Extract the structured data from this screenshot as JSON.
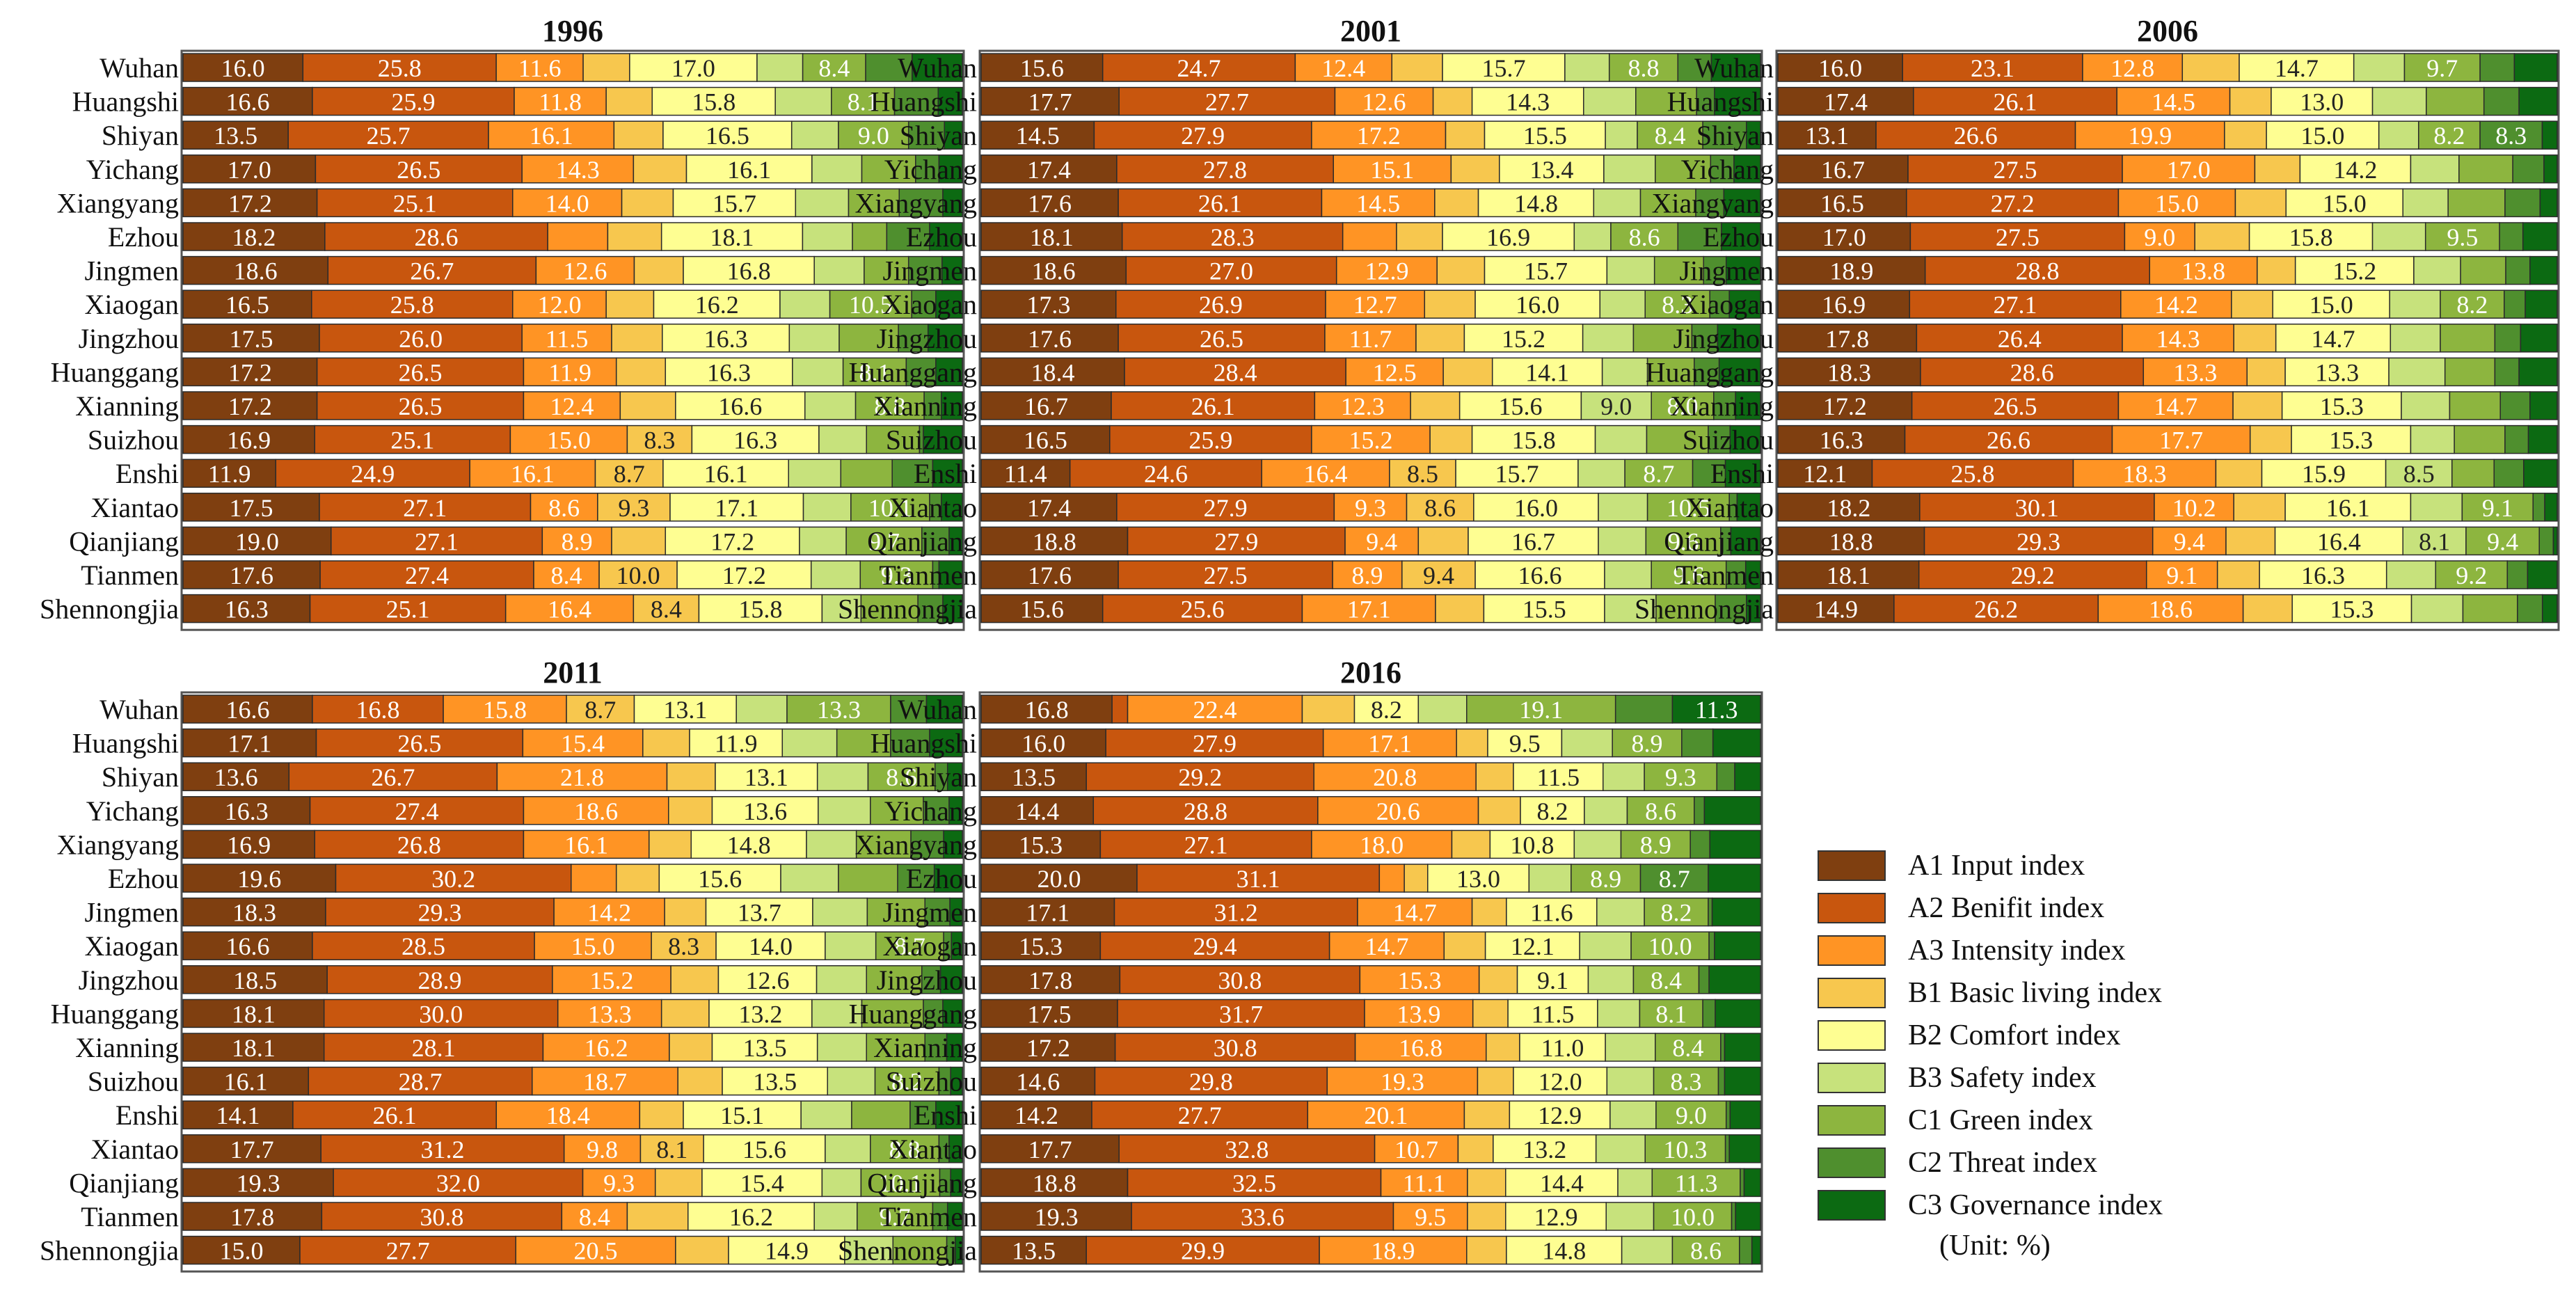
{
  "chart_data": {
    "type": "bar",
    "orientation": "horizontal",
    "stacked": true,
    "xlim": [
      0,
      100
    ],
    "legend_position": "bottom-right",
    "unit_label": "(Unit: %)",
    "components": [
      {
        "code": "A1",
        "label": "A1 Input index",
        "color": "#7f3f10"
      },
      {
        "code": "A2",
        "label": "A2 Benifit index",
        "color": "#c8560e"
      },
      {
        "code": "A3",
        "label": "A3 Intensity index",
        "color": "#ff9424"
      },
      {
        "code": "B1",
        "label": "B1 Basic living index",
        "color": "#f7c74e"
      },
      {
        "code": "B2",
        "label": "B2 Comfort index",
        "color": "#fefe92"
      },
      {
        "code": "B3",
        "label": "B3 Safety index",
        "color": "#c7e27c"
      },
      {
        "code": "C1",
        "label": "C1 Green index",
        "color": "#8db53f"
      },
      {
        "code": "C2",
        "label": "C2 Threat index",
        "color": "#4f8f2e"
      },
      {
        "code": "C3",
        "label": "C3 Governance index",
        "color": "#0c6a12"
      }
    ],
    "categories": [
      "Wuhan",
      "Huangshi",
      "Shiyan",
      "Yichang",
      "Xiangyang",
      "Ezhou",
      "Jingmen",
      "Xiaogan",
      "Jingzhou",
      "Huanggang",
      "Xianning",
      "Suizhou",
      "Enshi",
      "Xiantao",
      "Qianjiang",
      "Tianmen",
      "Shennongjia"
    ],
    "panels": [
      {
        "title": "1996",
        "rows": [
          [
            16.0,
            25.8,
            11.6,
            6.2,
            17.0,
            6.1,
            8.4,
            6.2,
            6.7
          ],
          [
            16.6,
            25.9,
            11.8,
            5.9,
            15.8,
            7.2,
            8.1,
            5.6,
            3.1
          ],
          [
            13.5,
            25.7,
            16.1,
            6.3,
            16.5,
            6.0,
            9.0,
            4.6,
            2.3
          ],
          [
            17.0,
            26.5,
            14.3,
            6.8,
            16.1,
            6.4,
            6.9,
            3.0,
            3.0
          ],
          [
            17.2,
            25.1,
            14.0,
            6.6,
            15.7,
            6.8,
            6.5,
            5.6,
            2.5
          ],
          [
            18.2,
            28.6,
            7.7,
            6.9,
            18.1,
            6.4,
            4.4,
            5.5,
            4.2
          ],
          [
            18.6,
            26.7,
            12.6,
            6.3,
            16.8,
            6.4,
            5.7,
            4.3,
            2.6
          ],
          [
            16.5,
            25.8,
            12.0,
            6.1,
            16.2,
            6.4,
            10.5,
            3.1,
            3.4
          ],
          [
            17.5,
            26.0,
            11.5,
            6.5,
            16.3,
            6.4,
            7.6,
            3.8,
            4.4
          ],
          [
            17.2,
            26.5,
            11.9,
            6.3,
            16.3,
            6.5,
            8.1,
            3.8,
            3.4
          ],
          [
            17.2,
            26.5,
            12.4,
            7.1,
            16.6,
            6.5,
            8.8,
            2.2,
            2.7
          ],
          [
            16.9,
            25.1,
            15.0,
            8.3,
            16.3,
            6.1,
            6.8,
            0.5,
            5.0
          ],
          [
            11.9,
            24.9,
            16.1,
            8.7,
            16.1,
            6.7,
            6.6,
            5.2,
            3.8
          ],
          [
            17.5,
            27.1,
            8.6,
            9.3,
            17.1,
            6.1,
            10.1,
            1.5,
            2.7
          ],
          [
            19.0,
            27.1,
            8.9,
            6.9,
            17.2,
            6.0,
            9.7,
            3.5,
            1.7
          ],
          [
            17.6,
            27.4,
            8.4,
            10.0,
            17.2,
            6.3,
            9.3,
            0.8,
            3.0
          ],
          [
            16.3,
            25.1,
            16.4,
            8.4,
            15.8,
            5.0,
            7.3,
            3.2,
            2.5
          ]
        ]
      },
      {
        "title": "2001",
        "rows": [
          [
            15.6,
            24.7,
            12.4,
            6.5,
            15.7,
            5.7,
            8.8,
            4.3,
            6.3
          ],
          [
            17.7,
            27.7,
            12.6,
            5.0,
            14.3,
            6.7,
            7.8,
            2.3,
            5.9
          ],
          [
            14.5,
            27.9,
            17.2,
            5.0,
            15.5,
            4.1,
            8.4,
            5.6,
            1.8
          ],
          [
            17.4,
            27.8,
            15.1,
            6.2,
            13.4,
            6.6,
            7.1,
            3.0,
            3.4
          ],
          [
            17.6,
            26.1,
            14.5,
            5.6,
            14.8,
            6.0,
            7.1,
            3.6,
            4.7
          ],
          [
            18.1,
            28.3,
            6.9,
            5.9,
            16.9,
            4.7,
            8.6,
            5.6,
            5.0
          ],
          [
            18.6,
            27.0,
            12.9,
            6.1,
            15.7,
            6.1,
            6.3,
            2.9,
            4.4
          ],
          [
            17.3,
            26.9,
            12.7,
            6.5,
            16.0,
            5.8,
            8.3,
            2.5,
            4.0
          ],
          [
            17.6,
            26.5,
            11.7,
            6.2,
            15.2,
            6.5,
            7.5,
            3.3,
            5.5
          ],
          [
            18.4,
            28.4,
            12.5,
            6.3,
            14.1,
            5.8,
            6.0,
            3.2,
            5.3
          ],
          [
            16.7,
            26.1,
            12.3,
            6.3,
            15.6,
            9.0,
            8.0,
            2.8,
            3.2
          ],
          [
            16.5,
            25.9,
            15.2,
            5.4,
            15.8,
            6.6,
            7.9,
            2.8,
            3.9
          ],
          [
            11.4,
            24.6,
            16.4,
            8.5,
            15.7,
            6.0,
            8.7,
            4.2,
            4.5
          ],
          [
            17.4,
            27.9,
            9.3,
            8.6,
            16.0,
            6.3,
            10.5,
            1.0,
            3.0
          ],
          [
            18.8,
            27.9,
            9.4,
            6.4,
            16.7,
            6.1,
            9.6,
            1.3,
            3.8
          ],
          [
            17.6,
            27.5,
            8.9,
            9.4,
            16.6,
            6.0,
            9.6,
            2.5,
            1.9
          ],
          [
            15.6,
            25.6,
            17.1,
            6.2,
            15.5,
            6.6,
            7.6,
            4.0,
            1.8
          ]
        ]
      },
      {
        "title": "2006",
        "rows": [
          [
            16.0,
            23.1,
            12.8,
            7.3,
            14.7,
            6.5,
            9.7,
            4.4,
            5.5
          ],
          [
            17.4,
            26.1,
            14.5,
            5.3,
            13.0,
            6.9,
            7.4,
            4.5,
            4.9
          ],
          [
            13.1,
            26.6,
            19.9,
            5.6,
            15.0,
            5.3,
            8.2,
            8.3,
            2.0
          ],
          [
            16.7,
            27.5,
            17.0,
            5.8,
            14.2,
            6.2,
            6.9,
            4.0,
            1.7
          ],
          [
            16.5,
            27.2,
            15.0,
            6.5,
            15.0,
            5.8,
            7.3,
            4.5,
            2.2
          ],
          [
            17.0,
            27.5,
            9.0,
            7.0,
            15.8,
            6.8,
            9.5,
            3.0,
            4.4
          ],
          [
            18.9,
            28.8,
            13.8,
            4.9,
            15.2,
            6.0,
            5.8,
            3.1,
            3.5
          ],
          [
            16.9,
            27.1,
            14.2,
            5.3,
            15.0,
            6.5,
            8.2,
            2.7,
            4.1
          ],
          [
            17.8,
            26.4,
            14.3,
            5.4,
            14.7,
            6.4,
            7.0,
            3.3,
            4.7
          ],
          [
            18.3,
            28.6,
            13.3,
            4.9,
            13.3,
            7.2,
            6.4,
            3.1,
            4.9
          ],
          [
            17.2,
            26.5,
            14.7,
            6.3,
            15.3,
            6.2,
            6.5,
            3.8,
            3.5
          ],
          [
            16.3,
            26.6,
            17.7,
            5.3,
            15.3,
            5.6,
            6.5,
            3.0,
            3.7
          ],
          [
            12.1,
            25.8,
            18.3,
            5.9,
            15.9,
            8.5,
            5.4,
            3.8,
            4.3
          ],
          [
            18.2,
            30.1,
            10.2,
            6.6,
            16.1,
            6.6,
            9.1,
            1.5,
            1.6
          ],
          [
            18.8,
            29.3,
            9.4,
            6.3,
            16.4,
            8.1,
            9.4,
            1.8,
            0.5
          ],
          [
            18.1,
            29.2,
            9.1,
            5.4,
            16.3,
            6.3,
            9.2,
            2.6,
            3.8
          ],
          [
            14.9,
            26.2,
            18.6,
            6.3,
            15.3,
            6.6,
            7.0,
            3.2,
            1.9
          ]
        ]
      },
      {
        "title": "2011",
        "rows": [
          [
            16.6,
            16.8,
            15.8,
            8.7,
            13.1,
            6.5,
            13.3,
            4.6,
            4.6
          ],
          [
            17.1,
            26.5,
            15.4,
            6.0,
            11.9,
            7.0,
            6.9,
            5.0,
            4.2
          ],
          [
            13.6,
            26.7,
            21.8,
            6.2,
            13.1,
            6.5,
            8.6,
            1.6,
            1.9
          ],
          [
            16.3,
            27.4,
            18.6,
            5.6,
            13.6,
            6.7,
            6.8,
            3.3,
            1.7
          ],
          [
            16.9,
            26.8,
            16.1,
            5.4,
            14.8,
            6.4,
            7.0,
            4.2,
            2.4
          ],
          [
            19.6,
            30.2,
            5.8,
            5.5,
            15.6,
            7.4,
            7.6,
            4.7,
            3.6
          ],
          [
            18.3,
            29.3,
            14.2,
            5.3,
            13.7,
            7.0,
            7.4,
            3.2,
            1.6
          ],
          [
            16.6,
            28.5,
            15.0,
            8.3,
            14.0,
            6.5,
            8.7,
            1.0,
            1.4
          ],
          [
            18.5,
            28.9,
            15.2,
            6.1,
            12.6,
            6.4,
            7.1,
            2.4,
            2.8
          ],
          [
            18.1,
            30.0,
            13.3,
            6.1,
            13.2,
            6.4,
            7.9,
            2.5,
            2.5
          ],
          [
            18.1,
            28.1,
            16.2,
            5.5,
            13.5,
            6.3,
            7.5,
            2.8,
            2.0
          ],
          [
            16.1,
            28.7,
            18.7,
            5.7,
            13.5,
            6.1,
            8.2,
            1.5,
            1.5
          ],
          [
            14.1,
            26.1,
            18.4,
            5.6,
            15.1,
            6.5,
            7.5,
            3.3,
            3.4
          ],
          [
            17.7,
            31.2,
            9.8,
            8.1,
            15.6,
            5.8,
            8.8,
            1.3,
            1.7
          ],
          [
            19.3,
            32.0,
            9.3,
            6.0,
            15.4,
            5.0,
            10.1,
            1.4,
            1.5
          ],
          [
            17.8,
            30.8,
            8.4,
            7.8,
            16.2,
            5.5,
            9.7,
            1.9,
            1.9
          ],
          [
            15.0,
            27.7,
            20.5,
            6.8,
            14.9,
            6.2,
            6.9,
            1.1,
            0.9
          ]
        ]
      },
      {
        "title": "2016",
        "rows": [
          [
            16.8,
            2.0,
            22.4,
            6.7,
            8.2,
            6.2,
            19.1,
            7.3,
            11.3
          ],
          [
            16.0,
            27.9,
            17.1,
            4.0,
            9.5,
            6.5,
            8.9,
            4.0,
            6.1
          ],
          [
            13.5,
            29.2,
            20.8,
            4.8,
            11.5,
            5.3,
            9.3,
            2.3,
            3.3
          ],
          [
            14.4,
            28.8,
            20.6,
            5.4,
            8.2,
            5.5,
            8.6,
            1.3,
            7.2
          ],
          [
            15.3,
            27.1,
            18.0,
            4.9,
            10.8,
            6.0,
            8.9,
            2.5,
            6.5
          ],
          [
            20.0,
            31.1,
            3.2,
            3.0,
            13.0,
            5.4,
            8.9,
            8.7,
            6.7
          ],
          [
            17.1,
            31.2,
            14.7,
            4.4,
            11.6,
            6.1,
            8.2,
            0.5,
            6.2
          ],
          [
            15.3,
            29.4,
            14.7,
            5.3,
            12.1,
            6.6,
            10.0,
            0.7,
            5.9
          ],
          [
            17.8,
            30.8,
            15.3,
            4.9,
            9.1,
            5.8,
            8.4,
            1.3,
            6.6
          ],
          [
            17.5,
            31.7,
            13.9,
            4.5,
            11.5,
            5.4,
            8.1,
            1.6,
            5.8
          ],
          [
            17.2,
            30.8,
            16.8,
            4.3,
            11.0,
            6.4,
            8.4,
            0.5,
            4.6
          ],
          [
            14.6,
            29.8,
            19.3,
            4.6,
            12.0,
            6.0,
            8.3,
            0.8,
            4.6
          ],
          [
            14.2,
            27.7,
            20.1,
            5.8,
            12.9,
            5.9,
            9.0,
            0.5,
            3.9
          ],
          [
            17.7,
            32.8,
            10.7,
            4.5,
            13.2,
            6.3,
            10.3,
            0.5,
            4.0
          ],
          [
            18.8,
            32.5,
            11.1,
            4.9,
            14.4,
            4.4,
            11.3,
            0.5,
            2.1
          ],
          [
            19.3,
            33.6,
            9.5,
            4.9,
            12.9,
            6.1,
            10.0,
            0.5,
            3.2
          ],
          [
            13.5,
            29.9,
            18.9,
            5.1,
            14.8,
            6.5,
            8.6,
            1.6,
            1.1
          ]
        ]
      }
    ]
  }
}
